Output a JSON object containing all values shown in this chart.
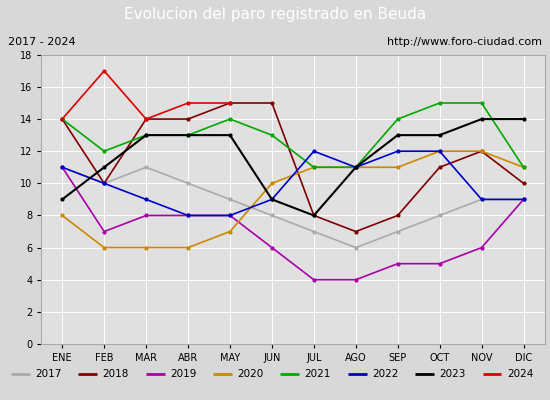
{
  "title": "Evolucion del paro registrado en Beuda",
  "subtitle_left": "2017 - 2024",
  "subtitle_right": "http://www.foro-ciudad.com",
  "months": [
    "ENE",
    "FEB",
    "MAR",
    "ABR",
    "MAY",
    "JUN",
    "JUL",
    "AGO",
    "SEP",
    "OCT",
    "NOV",
    "DIC"
  ],
  "series": {
    "2017": {
      "data": [
        11,
        10,
        11,
        10,
        9,
        8,
        7,
        6,
        7,
        8,
        9,
        9
      ],
      "color": "#aaaaaa",
      "linewidth": 1.2
    },
    "2018": {
      "data": [
        14,
        10,
        14,
        14,
        15,
        15,
        8,
        7,
        8,
        11,
        12,
        10
      ],
      "color": "#800000",
      "linewidth": 1.2
    },
    "2019": {
      "data": [
        11,
        7,
        8,
        8,
        8,
        6,
        4,
        4,
        5,
        5,
        6,
        9
      ],
      "color": "#aa00aa",
      "linewidth": 1.2
    },
    "2020": {
      "data": [
        8,
        6,
        6,
        6,
        7,
        10,
        11,
        11,
        11,
        12,
        12,
        11
      ],
      "color": "#cc8800",
      "linewidth": 1.2
    },
    "2021": {
      "data": [
        14,
        12,
        13,
        13,
        14,
        13,
        11,
        11,
        14,
        15,
        15,
        11
      ],
      "color": "#00aa00",
      "linewidth": 1.2
    },
    "2022": {
      "data": [
        11,
        10,
        9,
        8,
        8,
        9,
        12,
        11,
        12,
        12,
        9,
        9
      ],
      "color": "#0000cc",
      "linewidth": 1.2
    },
    "2023": {
      "data": [
        9,
        11,
        13,
        13,
        13,
        9,
        8,
        11,
        13,
        13,
        14,
        14
      ],
      "color": "#000000",
      "linewidth": 1.5
    },
    "2024": {
      "data": [
        14,
        17,
        14,
        15,
        15,
        null,
        null,
        null,
        null,
        null,
        null,
        null
      ],
      "color": "#dd0000",
      "linewidth": 1.2
    }
  },
  "ylim": [
    0,
    18
  ],
  "yticks": [
    0,
    2,
    4,
    6,
    8,
    10,
    12,
    14,
    16,
    18
  ],
  "bg_color": "#d8d8d8",
  "plot_bg": "#e0e0e0",
  "title_bg": "#4f86c6",
  "title_color": "#ffffff",
  "subtitle_bg": "#d0d0d0",
  "legend_bg": "#f0f0f0",
  "title_fontsize": 11,
  "subtitle_fontsize": 8,
  "tick_fontsize": 7,
  "legend_fontsize": 7.5
}
